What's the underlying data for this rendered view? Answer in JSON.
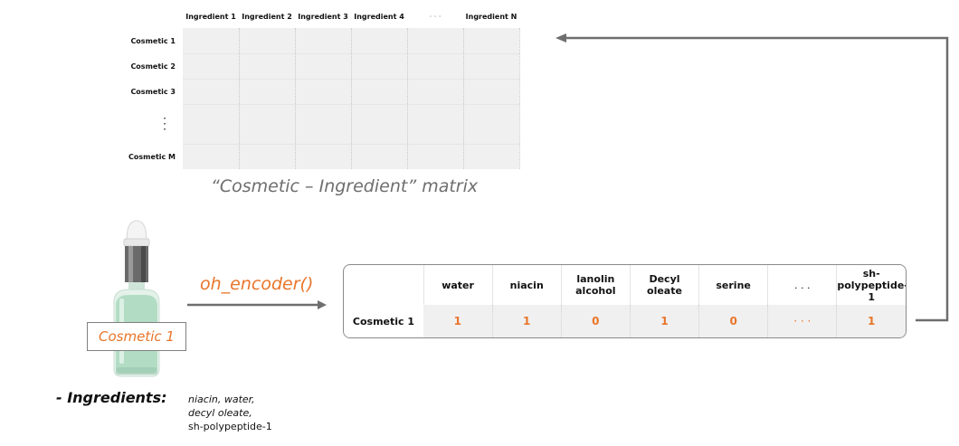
{
  "matrix": {
    "columns": [
      "Ingredient 1",
      "Ingredient 2",
      "Ingredient 3",
      "Ingredient 4",
      "· · ·",
      "Ingredient N"
    ],
    "rows": [
      "Cosmetic 1",
      "Cosmetic 2",
      "Cosmetic 3",
      "Cosmetic M"
    ],
    "vertical_ellipsis": "·\n·\n·",
    "caption": "“Cosmetic – Ingredient” matrix"
  },
  "bottle": {
    "label": "Cosmetic 1",
    "colors": {
      "liquid": "#a8d5bd",
      "glass": "#e9f4ee",
      "cap": "#5a5a5a",
      "dropper": "#f2f2f2"
    }
  },
  "encoder": {
    "label": "oh_encoder()"
  },
  "vector": {
    "columns": [
      "water",
      "niacin",
      "lanolin alcohol",
      "Decyl oleate",
      "serine",
      ". . .",
      "sh-polypeptide-1"
    ],
    "column_lines": [
      [
        "water"
      ],
      [
        "niacin"
      ],
      [
        "lanolin",
        "alcohol"
      ],
      [
        "Decyl",
        "oleate"
      ],
      [
        "serine"
      ],
      [
        ". . ."
      ],
      [
        "sh-",
        "polypeptide-1"
      ]
    ],
    "row_label": "Cosmetic 1",
    "values": [
      "1",
      "1",
      "0",
      "1",
      "0",
      "· · ·",
      "1"
    ]
  },
  "ingredients": {
    "title": "- Ingredients:",
    "lines": [
      "niacin, water,",
      "decyl oleate,",
      "sh-polypeptide-1"
    ]
  },
  "colors": {
    "accent": "#e9752a",
    "arrow": "#6e6e6e",
    "cell": "#f0f0f0"
  }
}
